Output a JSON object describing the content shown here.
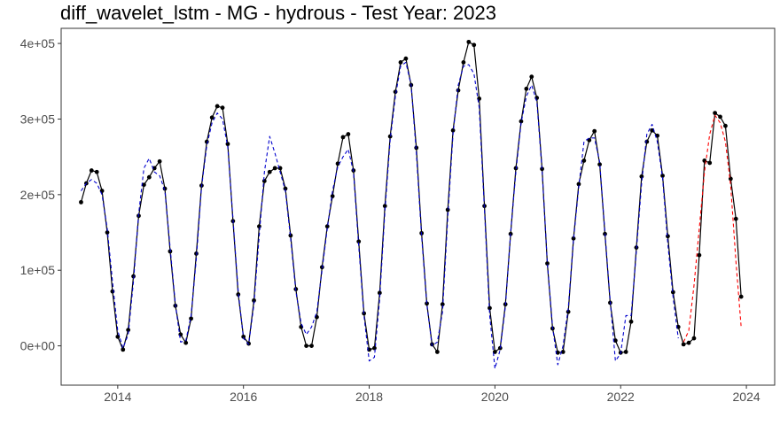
{
  "title": "diff_wavelet_lstm - MG - hydrous - Test Year: 2023",
  "chart_data": {
    "type": "line",
    "title": "diff_wavelet_lstm - MG - hydrous - Test Year: 2023",
    "xlabel": "",
    "ylabel": "",
    "xlim": [
      2013.1,
      2024.45
    ],
    "ylim": [
      -52000,
      420000
    ],
    "x_ticks": [
      2014,
      2016,
      2018,
      2020,
      2022,
      2024
    ],
    "x_tick_labels": [
      "2014",
      "2016",
      "2018",
      "2020",
      "2022",
      "2024"
    ],
    "y_ticks": [
      0,
      100000,
      200000,
      300000,
      400000
    ],
    "y_tick_labels": [
      "0e+00",
      "1e+05",
      "2e+05",
      "3e+05",
      "4e+05"
    ],
    "grid": false,
    "legend": "none",
    "colors": {
      "actual": "#000000",
      "fitted": "#0000cd",
      "forecast": "#ff0000"
    },
    "series": [
      {
        "role": "actual",
        "style": "solid line with points",
        "x_start": "2013-06",
        "x_step": "1 month",
        "values": [
          190000,
          215000,
          232000,
          230000,
          205000,
          150000,
          72000,
          12000,
          -5000,
          21000,
          92000,
          172000,
          213000,
          223000,
          235000,
          244000,
          208000,
          125000,
          53000,
          15000,
          4000,
          36000,
          122000,
          212000,
          270000,
          302000,
          317000,
          315000,
          267000,
          165000,
          68000,
          12000,
          3000,
          60000,
          158000,
          218000,
          230000,
          235000,
          235000,
          208000,
          146000,
          75000,
          25000,
          0,
          0,
          38000,
          104000,
          158000,
          198000,
          241000,
          276000,
          280000,
          232000,
          138000,
          43000,
          -5000,
          -3000,
          70000,
          185000,
          277000,
          336000,
          375000,
          380000,
          345000,
          262000,
          149000,
          56000,
          2000,
          -8000,
          55000,
          180000,
          285000,
          338000,
          375000,
          402000,
          398000,
          327000,
          185000,
          50000,
          -8000,
          -3000,
          55000,
          148000,
          235000,
          297000,
          340000,
          356000,
          328000,
          234000,
          109000,
          23000,
          -9000,
          -8000,
          45000,
          142000,
          214000,
          245000,
          272000,
          284000,
          240000,
          148000,
          57000,
          7000,
          -9000,
          -8000,
          32000,
          130000,
          224000,
          270000,
          285000,
          278000,
          225000,
          145000,
          71000,
          25000,
          2000,
          4000,
          10000,
          120000,
          245000,
          242000,
          308000,
          303000,
          291000,
          221000,
          168000,
          65000
        ]
      },
      {
        "role": "fitted",
        "style": "dashed line",
        "x_start": "2013-06",
        "x_step": "1 month",
        "values": [
          205000,
          215000,
          220000,
          215000,
          200000,
          155000,
          85000,
          20000,
          -3000,
          15000,
          85000,
          175000,
          235000,
          248000,
          230000,
          225000,
          205000,
          130000,
          55000,
          5000,
          7000,
          40000,
          115000,
          210000,
          265000,
          295000,
          308000,
          300000,
          263000,
          168000,
          72000,
          10000,
          2000,
          55000,
          145000,
          230000,
          277000,
          255000,
          230000,
          205000,
          142000,
          72000,
          30000,
          15000,
          25000,
          45000,
          100000,
          155000,
          205000,
          237000,
          250000,
          260000,
          230000,
          132000,
          40000,
          -20000,
          -15000,
          62000,
          178000,
          272000,
          330000,
          370000,
          375000,
          345000,
          255000,
          145000,
          55000,
          0,
          5000,
          45000,
          170000,
          280000,
          345000,
          370000,
          372000,
          360000,
          315000,
          180000,
          40000,
          -30000,
          -5000,
          52000,
          150000,
          230000,
          295000,
          330000,
          345000,
          323000,
          232000,
          110000,
          25000,
          -25000,
          0,
          50000,
          140000,
          210000,
          270000,
          275000,
          275000,
          243000,
          150000,
          60000,
          -20000,
          -10000,
          40000,
          40000,
          125000,
          215000,
          280000,
          293000,
          270000,
          222000,
          135000,
          65000,
          10000
        ]
      },
      {
        "role": "forecast",
        "style": "dashed line",
        "x_start": "2023-01",
        "x_step": "1 month",
        "values": [
          5000,
          20000,
          80000,
          155000,
          230000,
          280000,
          305000,
          295000,
          270000,
          212000,
          112000,
          25000
        ]
      }
    ]
  }
}
